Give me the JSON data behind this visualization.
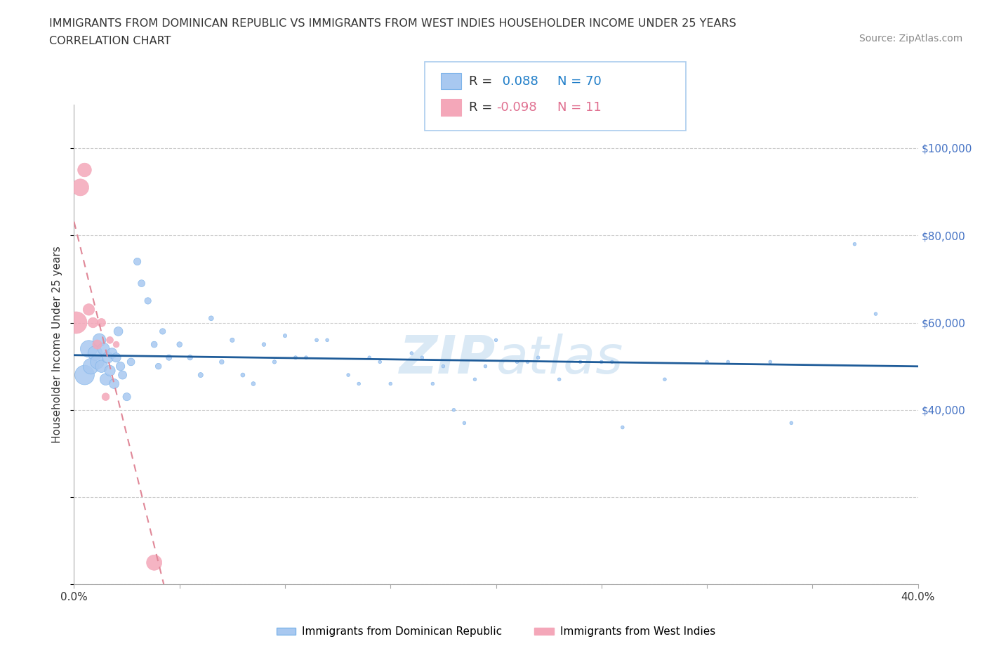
{
  "title_line1": "IMMIGRANTS FROM DOMINICAN REPUBLIC VS IMMIGRANTS FROM WEST INDIES HOUSEHOLDER INCOME UNDER 25 YEARS",
  "title_line2": "CORRELATION CHART",
  "source": "Source: ZipAtlas.com",
  "ylabel": "Householder Income Under 25 years",
  "watermark": "ZIPatlas",
  "xlim": [
    0.0,
    0.4
  ],
  "ylim": [
    0,
    110000
  ],
  "r_blue": 0.088,
  "n_blue": 70,
  "r_pink": -0.098,
  "n_pink": 11,
  "blue_color": "#A8C8F0",
  "blue_edge_color": "#7EB4EA",
  "pink_color": "#F4A7B9",
  "pink_edge_color": "#F4A7B9",
  "blue_line_color": "#1F5C99",
  "pink_line_color": "#E08898",
  "right_tick_color": "#4472C4",
  "legend_label_blue": "Immigrants from Dominican Republic",
  "legend_label_pink": "Immigrants from West Indies",
  "blue_x": [
    0.005,
    0.007,
    0.008,
    0.01,
    0.011,
    0.012,
    0.013,
    0.014,
    0.015,
    0.016,
    0.017,
    0.018,
    0.019,
    0.02,
    0.021,
    0.022,
    0.023,
    0.025,
    0.027,
    0.03,
    0.032,
    0.035,
    0.038,
    0.04,
    0.042,
    0.045,
    0.05,
    0.055,
    0.06,
    0.065,
    0.07,
    0.075,
    0.08,
    0.085,
    0.09,
    0.095,
    0.1,
    0.105,
    0.11,
    0.115,
    0.12,
    0.13,
    0.135,
    0.14,
    0.145,
    0.15,
    0.16,
    0.165,
    0.17,
    0.175,
    0.18,
    0.185,
    0.19,
    0.195,
    0.2,
    0.21,
    0.215,
    0.22,
    0.23,
    0.24,
    0.25,
    0.255,
    0.26,
    0.28,
    0.3,
    0.31,
    0.33,
    0.34,
    0.37,
    0.38
  ],
  "blue_y": [
    48000,
    54000,
    50000,
    53000,
    51000,
    56000,
    50000,
    54000,
    47000,
    52000,
    49000,
    53000,
    46000,
    52000,
    58000,
    50000,
    48000,
    43000,
    51000,
    74000,
    69000,
    65000,
    55000,
    50000,
    58000,
    52000,
    55000,
    52000,
    48000,
    61000,
    51000,
    56000,
    48000,
    46000,
    55000,
    51000,
    57000,
    52000,
    52000,
    56000,
    56000,
    48000,
    46000,
    52000,
    51000,
    46000,
    53000,
    52000,
    46000,
    50000,
    40000,
    37000,
    47000,
    50000,
    56000,
    51000,
    51000,
    52000,
    47000,
    51000,
    51000,
    51000,
    36000,
    47000,
    51000,
    51000,
    51000,
    37000,
    78000,
    62000
  ],
  "blue_sizes": [
    400,
    300,
    260,
    220,
    200,
    180,
    160,
    150,
    140,
    130,
    120,
    110,
    100,
    90,
    85,
    80,
    75,
    65,
    60,
    55,
    50,
    45,
    40,
    38,
    36,
    34,
    30,
    28,
    26,
    24,
    22,
    20,
    18,
    17,
    16,
    15,
    14,
    13,
    12,
    12,
    11,
    11,
    11,
    11,
    11,
    11,
    11,
    11,
    11,
    11,
    11,
    11,
    11,
    11,
    11,
    11,
    11,
    11,
    11,
    11,
    11,
    11,
    11,
    11,
    11,
    11,
    11,
    11,
    11,
    11
  ],
  "pink_x": [
    0.003,
    0.005,
    0.007,
    0.009,
    0.011,
    0.013,
    0.001,
    0.015,
    0.017,
    0.02,
    0.038
  ],
  "pink_y": [
    91000,
    95000,
    63000,
    60000,
    55000,
    60000,
    60000,
    43000,
    56000,
    55000,
    5000
  ],
  "pink_sizes": [
    300,
    200,
    140,
    110,
    90,
    75,
    500,
    60,
    50,
    40,
    250
  ],
  "pink_line_x_start": 0.0,
  "pink_line_x_end": 0.25,
  "blue_line_x_start": 0.0,
  "blue_line_x_end": 0.4
}
